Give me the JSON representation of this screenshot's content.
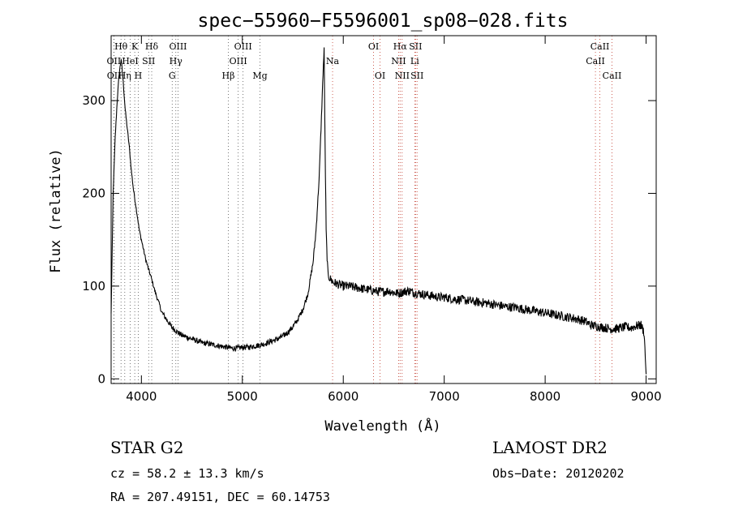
{
  "chart_data": {
    "type": "line",
    "title": "spec−55960−F5596001_sp08−028.fits",
    "xlabel": "Wavelength (Å)",
    "ylabel": "Flux (relative)",
    "xlim": [
      3700,
      9100
    ],
    "ylim": [
      -5,
      370
    ],
    "x_ticks": [
      4000,
      5000,
      6000,
      7000,
      8000,
      9000
    ],
    "y_ticks": [
      0,
      100,
      200,
      300
    ],
    "grid": false,
    "series": [
      {
        "x": [
          3700,
          3720,
          3740,
          3760,
          3780,
          3800,
          3820,
          3840,
          3860,
          3880,
          3900,
          3920,
          3940,
          3960,
          3980,
          4000,
          4020,
          4040,
          4060,
          4080,
          4100,
          4120,
          4140,
          4160,
          4180,
          4200,
          4250,
          4300,
          4350,
          4400,
          4450,
          4500,
          4550,
          4600,
          4650,
          4700,
          4750,
          4800,
          4850,
          4900,
          4950,
          5000,
          5050,
          5100,
          5150,
          5200,
          5250,
          5300,
          5350,
          5400,
          5450,
          5500,
          5550,
          5600,
          5650,
          5700,
          5730,
          5760,
          5780,
          5800,
          5810,
          5820,
          5830,
          5840,
          5850,
          5870,
          5900,
          5950,
          6000,
          6050,
          6100,
          6150,
          6200,
          6250,
          6300,
          6350,
          6400,
          6450,
          6500,
          6550,
          6600,
          6650,
          6700,
          6750,
          6800,
          6850,
          6900,
          6950,
          7000,
          7100,
          7200,
          7300,
          7400,
          7500,
          7600,
          7700,
          7800,
          7900,
          8000,
          8100,
          8200,
          8300,
          8400,
          8450,
          8500,
          8550,
          8600,
          8650,
          8700,
          8750,
          8800,
          8850,
          8900,
          8950,
          8980,
          9000
        ],
        "y": [
          70,
          200,
          260,
          300,
          330,
          345,
          320,
          290,
          270,
          250,
          225,
          205,
          190,
          175,
          160,
          150,
          140,
          130,
          122,
          115,
          108,
          100,
          92,
          86,
          80,
          72,
          64,
          56,
          51,
          47,
          45,
          43,
          41,
          39,
          38,
          37,
          36,
          35,
          34,
          33,
          33,
          34,
          34,
          35,
          36,
          37,
          39,
          41,
          43,
          46,
          50,
          56,
          64,
          75,
          92,
          125,
          160,
          215,
          270,
          330,
          355,
          250,
          160,
          130,
          112,
          108,
          104,
          102,
          100,
          100,
          99,
          98,
          97,
          96,
          95,
          94,
          94,
          95,
          93,
          92,
          94,
          95,
          93,
          92,
          91,
          90,
          89,
          88,
          88,
          86,
          85,
          83,
          82,
          80,
          78,
          77,
          75,
          73,
          71,
          69,
          67,
          65,
          62,
          58,
          57,
          56,
          55,
          54,
          54,
          55,
          56,
          55,
          57,
          58,
          50,
          5
        ]
      }
    ],
    "line_markers": [
      {
        "label": "Hθ",
        "wavelength": 3798,
        "row": 0
      },
      {
        "label": "OII",
        "wavelength": 3727,
        "row": 1
      },
      {
        "label": "OII",
        "wavelength": 3729,
        "row": 2
      },
      {
        "label": "K",
        "wavelength": 3934,
        "row": 0
      },
      {
        "label": "HeI",
        "wavelength": 3889,
        "row": 1
      },
      {
        "label": "Hη",
        "wavelength": 3835,
        "row": 2
      },
      {
        "label": "SII",
        "wavelength": 4072,
        "row": 1
      },
      {
        "label": "H",
        "wavelength": 3969,
        "row": 2
      },
      {
        "label": "Hδ",
        "wavelength": 4102,
        "row": 0
      },
      {
        "label": "OIII",
        "wavelength": 4363,
        "row": 0
      },
      {
        "label": "Hγ",
        "wavelength": 4341,
        "row": 1
      },
      {
        "label": "G",
        "wavelength": 4305,
        "row": 2
      },
      {
        "label": "Hβ",
        "wavelength": 4861,
        "row": 2
      },
      {
        "label": "OIII",
        "wavelength": 5007,
        "row": 0
      },
      {
        "label": "OIII",
        "wavelength": 4959,
        "row": 1
      },
      {
        "label": "Mg",
        "wavelength": 5175,
        "row": 2
      },
      {
        "label": "Na",
        "wavelength": 5894,
        "row": 1
      },
      {
        "label": "OI",
        "wavelength": 6300,
        "row": 0
      },
      {
        "label": "OI",
        "wavelength": 6364,
        "row": 2
      },
      {
        "label": "Hα",
        "wavelength": 6563,
        "row": 0
      },
      {
        "label": "SII",
        "wavelength": 6716,
        "row": 0
      },
      {
        "label": "NII",
        "wavelength": 6548,
        "row": 1
      },
      {
        "label": "Li",
        "wavelength": 6708,
        "row": 1
      },
      {
        "label": "NII",
        "wavelength": 6583,
        "row": 2
      },
      {
        "label": "SII",
        "wavelength": 6731,
        "row": 2
      },
      {
        "label": "CaII",
        "wavelength": 8542,
        "row": 0
      },
      {
        "label": "CaII",
        "wavelength": 8498,
        "row": 1
      },
      {
        "label": "CaII",
        "wavelength": 8662,
        "row": 2
      }
    ]
  },
  "info": {
    "classification": "STAR    G2",
    "survey": "LAMOST  DR2",
    "redshift": "cz = 58.2 ± 13.3 km/s",
    "obs_date": "Obs−Date: 20120202",
    "coords": "RA = 207.49151, DEC =  60.14753"
  }
}
